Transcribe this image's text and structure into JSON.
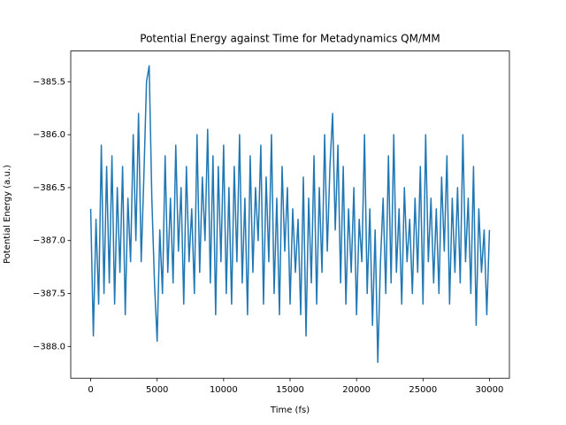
{
  "chart_data": {
    "type": "line",
    "title": "Potential Energy against Time for Metadynamics QM/MM",
    "x_label": "Time (fs)",
    "y_label": "Potential Energy (a.u.)",
    "color": "#1f77b4",
    "xlim": [
      -1500,
      31500
    ],
    "ylim": [
      -388.3,
      -385.21
    ],
    "xticks": [
      0,
      5000,
      10000,
      15000,
      20000,
      25000,
      30000
    ],
    "yticks": [
      {
        "value": -385.5,
        "label": "−385.5"
      },
      {
        "value": -386.0,
        "label": "−386.0"
      },
      {
        "value": -386.5,
        "label": "−386.5"
      },
      {
        "value": -387.0,
        "label": "−387.0"
      },
      {
        "value": -387.5,
        "label": "−387.5"
      },
      {
        "value": -388.0,
        "label": "−388.0"
      }
    ],
    "x": [
      0,
      200,
      400,
      600,
      800,
      1000,
      1200,
      1400,
      1600,
      1800,
      2000,
      2200,
      2400,
      2600,
      2800,
      3000,
      3200,
      3400,
      3600,
      3800,
      4000,
      4200,
      4400,
      4600,
      4800,
      5000,
      5200,
      5400,
      5600,
      5800,
      6000,
      6200,
      6400,
      6600,
      6800,
      7000,
      7200,
      7400,
      7600,
      7800,
      8000,
      8200,
      8400,
      8600,
      8800,
      9000,
      9200,
      9400,
      9600,
      9800,
      10000,
      10200,
      10400,
      10600,
      10800,
      11000,
      11200,
      11400,
      11600,
      11800,
      12000,
      12200,
      12400,
      12600,
      12800,
      13000,
      13200,
      13400,
      13600,
      13800,
      14000,
      14200,
      14400,
      14600,
      14800,
      15000,
      15200,
      15400,
      15600,
      15800,
      16000,
      16200,
      16400,
      16600,
      16800,
      17000,
      17200,
      17400,
      17600,
      17800,
      18000,
      18200,
      18400,
      18600,
      18800,
      19000,
      19200,
      19400,
      19600,
      19800,
      20000,
      20200,
      20400,
      20600,
      20800,
      21000,
      21200,
      21400,
      21600,
      21800,
      22000,
      22200,
      22400,
      22600,
      22800,
      23000,
      23200,
      23400,
      23600,
      23800,
      24000,
      24200,
      24400,
      24600,
      24800,
      25000,
      25200,
      25400,
      25600,
      25800,
      26000,
      26200,
      26400,
      26600,
      26800,
      27000,
      27200,
      27400,
      27600,
      27800,
      28000,
      28200,
      28400,
      28600,
      28800,
      29000,
      29200,
      29400,
      29600,
      29800,
      30000
    ],
    "values": [
      -386.7,
      -387.9,
      -386.8,
      -387.6,
      -386.1,
      -387.5,
      -386.3,
      -387.4,
      -386.2,
      -387.6,
      -386.5,
      -387.3,
      -386.3,
      -387.7,
      -386.6,
      -387.2,
      -386.0,
      -387.0,
      -385.8,
      -387.2,
      -386.4,
      -385.5,
      -385.35,
      -386.6,
      -387.4,
      -387.95,
      -386.9,
      -387.5,
      -386.2,
      -387.3,
      -386.6,
      -387.4,
      -386.1,
      -387.1,
      -386.5,
      -387.6,
      -386.3,
      -387.2,
      -386.7,
      -387.5,
      -386.0,
      -387.3,
      -386.4,
      -387.0,
      -385.95,
      -387.4,
      -386.2,
      -387.7,
      -386.3,
      -387.2,
      -386.1,
      -387.5,
      -386.5,
      -387.6,
      -386.3,
      -387.2,
      -386.0,
      -387.4,
      -386.6,
      -387.7,
      -386.2,
      -387.3,
      -386.5,
      -387.0,
      -386.1,
      -387.6,
      -386.4,
      -387.2,
      -386.0,
      -387.5,
      -386.6,
      -387.7,
      -386.3,
      -387.1,
      -386.5,
      -387.6,
      -386.7,
      -387.3,
      -386.8,
      -387.7,
      -386.4,
      -387.9,
      -386.6,
      -387.4,
      -386.2,
      -387.6,
      -386.5,
      -387.3,
      -386.0,
      -387.1,
      -386.3,
      -385.8,
      -386.9,
      -386.1,
      -387.4,
      -386.3,
      -387.6,
      -386.7,
      -387.3,
      -386.5,
      -387.7,
      -386.8,
      -387.2,
      -386.0,
      -387.5,
      -386.7,
      -387.8,
      -386.9,
      -388.15,
      -387.2,
      -386.6,
      -387.5,
      -386.2,
      -387.4,
      -386.0,
      -387.3,
      -386.7,
      -387.6,
      -386.5,
      -387.2,
      -386.8,
      -387.5,
      -386.6,
      -387.3,
      -386.3,
      -387.6,
      -386.0,
      -387.2,
      -386.6,
      -387.4,
      -386.7,
      -387.5,
      -386.4,
      -387.1,
      -386.2,
      -387.6,
      -386.6,
      -387.3,
      -386.5,
      -387.4,
      -386.0,
      -387.2,
      -386.6,
      -387.5,
      -386.3,
      -387.8,
      -386.7,
      -387.3,
      -386.9,
      -387.7,
      -386.9
    ]
  }
}
